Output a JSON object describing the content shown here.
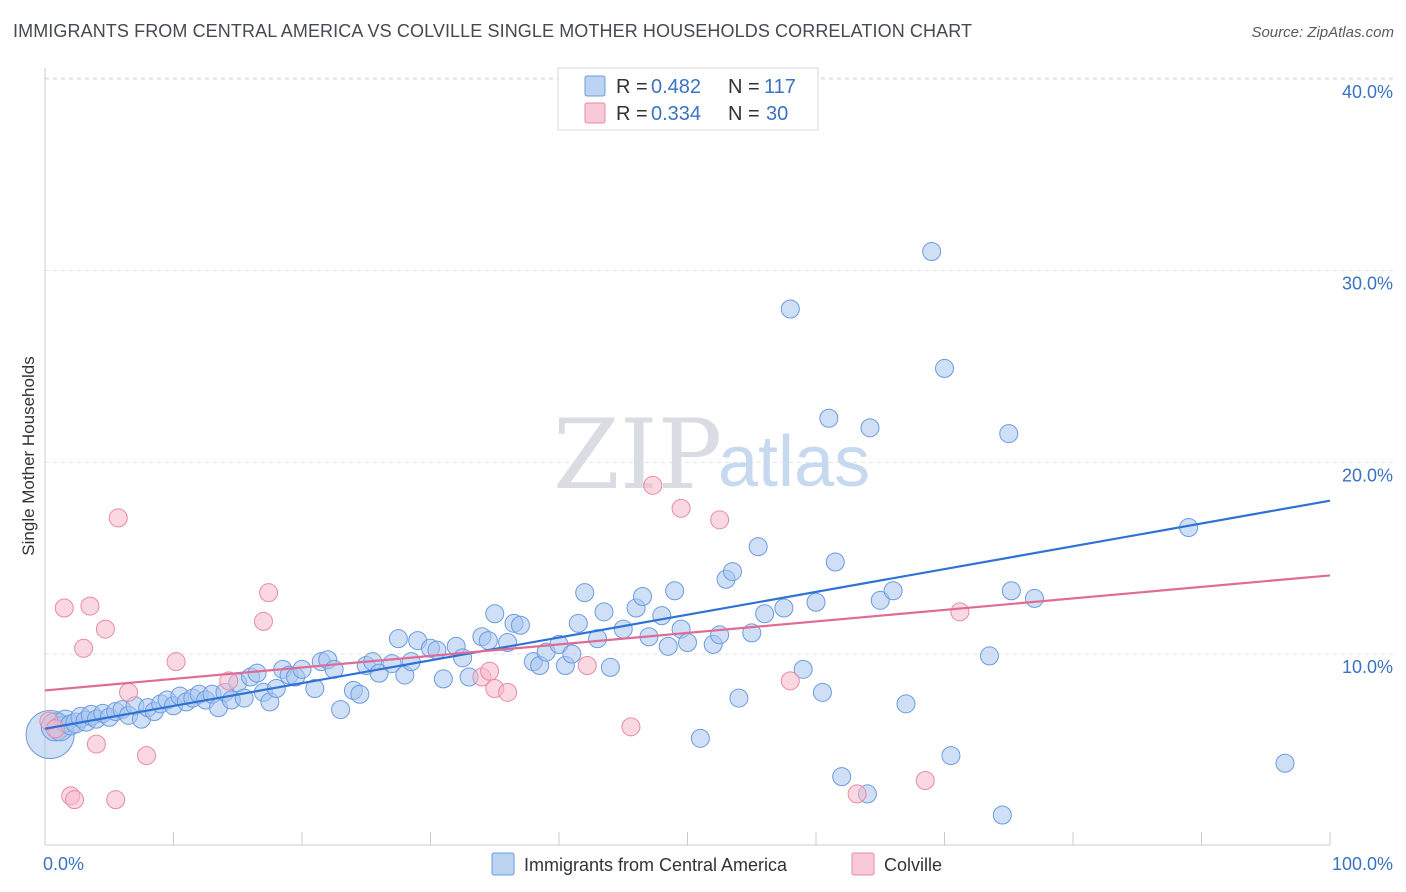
{
  "title": "IMMIGRANTS FROM CENTRAL AMERICA VS COLVILLE SINGLE MOTHER HOUSEHOLDS CORRELATION CHART",
  "source": "Source: ZipAtlas.com",
  "watermark": {
    "zip": "ZIP",
    "atlas": "atlas"
  },
  "legend": {
    "rows": [
      {
        "r_label": "R = ",
        "r_value": "0.482",
        "n_label": "N = ",
        "n_value": "117"
      },
      {
        "r_label": "R = ",
        "r_value": "0.334",
        "n_label": "N = ",
        "n_value": "30"
      }
    ]
  },
  "chart_data": {
    "type": "scatter",
    "title": "IMMIGRANTS FROM CENTRAL AMERICA VS COLVILLE SINGLE MOTHER HOUSEHOLDS CORRELATION CHART",
    "xlabel": "",
    "ylabel": "Single Mother Households",
    "xlim": [
      0,
      100
    ],
    "ylim": [
      0,
      42
    ],
    "x_tick_labels": [
      "0.0%",
      "100.0%"
    ],
    "y_ticks": [
      10,
      20,
      30,
      40
    ],
    "y_tick_labels": [
      "10.0%",
      "20.0%",
      "30.0%",
      "40.0%"
    ],
    "grid": true,
    "colors": {
      "blue": "#a7c4ee",
      "blue_edge": "#6c9be0",
      "blue_line": "#2f72d6",
      "pink": "#f5b8ca",
      "pink_edge": "#e88aa6",
      "pink_line": "#e06b95"
    },
    "series": [
      {
        "name": "Immigrants from Central America",
        "color": "blue",
        "trend": {
          "x": [
            0,
            100
          ],
          "y": [
            6.1,
            18.0
          ]
        },
        "points": [
          [
            0.4,
            5.8,
            24
          ],
          [
            0.8,
            6.2,
            14
          ],
          [
            1.2,
            6.1,
            12
          ],
          [
            1.6,
            6.5,
            11
          ],
          [
            2.0,
            6.3,
            10
          ],
          [
            2.4,
            6.4,
            10
          ],
          [
            2.8,
            6.7,
            10
          ],
          [
            3.2,
            6.5,
            10
          ],
          [
            3.6,
            6.8,
            10
          ],
          [
            4.0,
            6.6,
            9
          ],
          [
            4.5,
            6.9,
            9
          ],
          [
            5.0,
            6.7,
            9
          ],
          [
            5.5,
            7.0,
            9
          ],
          [
            6.0,
            7.1,
            9
          ],
          [
            6.5,
            6.8,
            9
          ],
          [
            7.0,
            7.3,
            9
          ],
          [
            7.5,
            6.6,
            9
          ],
          [
            8.0,
            7.2,
            9
          ],
          [
            8.5,
            7.0,
            9
          ],
          [
            9.0,
            7.4,
            9
          ],
          [
            9.5,
            7.6,
            9
          ],
          [
            10.0,
            7.3,
            9
          ],
          [
            10.5,
            7.8,
            9
          ],
          [
            11.0,
            7.5,
            9
          ],
          [
            11.5,
            7.7,
            9
          ],
          [
            12.0,
            7.9,
            9
          ],
          [
            12.5,
            7.6,
            9
          ],
          [
            13.0,
            7.9,
            9
          ],
          [
            13.5,
            7.2,
            9
          ],
          [
            14.0,
            8.0,
            9
          ],
          [
            14.5,
            7.6,
            9
          ],
          [
            15.0,
            8.5,
            9
          ],
          [
            15.5,
            7.7,
            9
          ],
          [
            16.0,
            8.8,
            9
          ],
          [
            16.5,
            9.0,
            9
          ],
          [
            17.0,
            8.0,
            9
          ],
          [
            17.5,
            7.5,
            9
          ],
          [
            18.0,
            8.2,
            9
          ],
          [
            18.5,
            9.2,
            9
          ],
          [
            19.0,
            8.9,
            9
          ],
          [
            19.5,
            8.8,
            9
          ],
          [
            20.0,
            9.2,
            9
          ],
          [
            21.0,
            8.2,
            9
          ],
          [
            21.5,
            9.6,
            9
          ],
          [
            22.0,
            9.7,
            9
          ],
          [
            22.5,
            9.2,
            9
          ],
          [
            23.0,
            7.1,
            9
          ],
          [
            24.0,
            8.1,
            9
          ],
          [
            24.5,
            7.9,
            9
          ],
          [
            25.0,
            9.4,
            9
          ],
          [
            25.5,
            9.6,
            9
          ],
          [
            26.0,
            9.0,
            9
          ],
          [
            27.0,
            9.5,
            9
          ],
          [
            27.5,
            10.8,
            9
          ],
          [
            28.0,
            8.9,
            9
          ],
          [
            28.5,
            9.6,
            9
          ],
          [
            29.0,
            10.7,
            9
          ],
          [
            30.0,
            10.3,
            9
          ],
          [
            30.5,
            10.2,
            9
          ],
          [
            31.0,
            8.7,
            9
          ],
          [
            32.0,
            10.4,
            9
          ],
          [
            32.5,
            9.8,
            9
          ],
          [
            33.0,
            8.8,
            9
          ],
          [
            34.0,
            10.9,
            9
          ],
          [
            34.5,
            10.7,
            9
          ],
          [
            35.0,
            12.1,
            9
          ],
          [
            36.0,
            10.6,
            9
          ],
          [
            36.5,
            11.6,
            9
          ],
          [
            37.0,
            11.5,
            9
          ],
          [
            38.0,
            9.6,
            9
          ],
          [
            38.5,
            9.4,
            9
          ],
          [
            39.0,
            10.1,
            9
          ],
          [
            40.0,
            10.5,
            9
          ],
          [
            40.5,
            9.4,
            9
          ],
          [
            41.0,
            10.0,
            9
          ],
          [
            41.5,
            11.6,
            9
          ],
          [
            42.0,
            13.2,
            9
          ],
          [
            43.0,
            10.8,
            9
          ],
          [
            43.5,
            12.2,
            9
          ],
          [
            44.0,
            9.3,
            9
          ],
          [
            45.0,
            11.3,
            9
          ],
          [
            46.0,
            12.4,
            9
          ],
          [
            46.5,
            13.0,
            9
          ],
          [
            47.0,
            10.9,
            9
          ],
          [
            48.0,
            12.0,
            9
          ],
          [
            48.5,
            10.4,
            9
          ],
          [
            49.0,
            13.3,
            9
          ],
          [
            49.5,
            11.3,
            9
          ],
          [
            50.0,
            10.6,
            9
          ],
          [
            51.0,
            5.6,
            9
          ],
          [
            52.0,
            10.5,
            9
          ],
          [
            52.5,
            11.0,
            9
          ],
          [
            53.0,
            13.9,
            9
          ],
          [
            53.5,
            14.3,
            9
          ],
          [
            54.0,
            7.7,
            9
          ],
          [
            55.0,
            11.1,
            9
          ],
          [
            55.5,
            15.6,
            9
          ],
          [
            56.0,
            12.1,
            9
          ],
          [
            57.5,
            12.4,
            9
          ],
          [
            58.0,
            28.0,
            9
          ],
          [
            59.0,
            9.2,
            9
          ],
          [
            60.0,
            12.7,
            9
          ],
          [
            60.5,
            8.0,
            9
          ],
          [
            61.0,
            22.3,
            9
          ],
          [
            61.5,
            14.8,
            9
          ],
          [
            62.0,
            3.6,
            9
          ],
          [
            64.0,
            2.7,
            9
          ],
          [
            64.2,
            21.8,
            9
          ],
          [
            65.0,
            12.8,
            9
          ],
          [
            66.0,
            13.3,
            9
          ],
          [
            67.0,
            7.4,
            9
          ],
          [
            69.0,
            31.0,
            9
          ],
          [
            70.0,
            24.9,
            9
          ],
          [
            70.5,
            4.7,
            9
          ],
          [
            73.5,
            9.9,
            9
          ],
          [
            74.5,
            1.6,
            9
          ],
          [
            75.0,
            21.5,
            9
          ],
          [
            75.2,
            13.3,
            9
          ],
          [
            77.0,
            12.9,
            9
          ],
          [
            89.0,
            16.6,
            9
          ],
          [
            96.5,
            4.3,
            9
          ]
        ]
      },
      {
        "name": "Colville",
        "color": "pink",
        "trend": {
          "x": [
            0,
            100
          ],
          "y": [
            8.1,
            14.1
          ]
        },
        "points": [
          [
            0.3,
            6.5,
            9
          ],
          [
            0.8,
            6.1,
            9
          ],
          [
            1.5,
            12.4,
            9
          ],
          [
            2.0,
            2.6,
            9
          ],
          [
            2.3,
            2.4,
            9
          ],
          [
            3.0,
            10.3,
            9
          ],
          [
            3.5,
            12.5,
            9
          ],
          [
            4.0,
            5.3,
            9
          ],
          [
            4.7,
            11.3,
            9
          ],
          [
            5.5,
            2.4,
            9
          ],
          [
            5.7,
            17.1,
            9
          ],
          [
            6.5,
            8.0,
            9
          ],
          [
            7.9,
            4.7,
            9
          ],
          [
            10.2,
            9.6,
            9
          ],
          [
            14.3,
            8.6,
            9
          ],
          [
            17.0,
            11.7,
            9
          ],
          [
            17.4,
            13.2,
            9
          ],
          [
            34.0,
            8.8,
            9
          ],
          [
            34.6,
            9.1,
            9
          ],
          [
            35.0,
            8.2,
            9
          ],
          [
            36.0,
            8.0,
            9
          ],
          [
            42.2,
            9.4,
            9
          ],
          [
            45.6,
            6.2,
            9
          ],
          [
            47.3,
            18.8,
            9
          ],
          [
            49.5,
            17.6,
            9
          ],
          [
            52.5,
            17.0,
            9
          ],
          [
            58.0,
            8.6,
            9
          ],
          [
            63.2,
            2.7,
            9
          ],
          [
            68.5,
            3.4,
            9
          ],
          [
            71.2,
            12.2,
            9
          ]
        ]
      }
    ]
  },
  "bottom_legend": [
    {
      "label": "Immigrants from Central America"
    },
    {
      "label": "Colville"
    }
  ]
}
